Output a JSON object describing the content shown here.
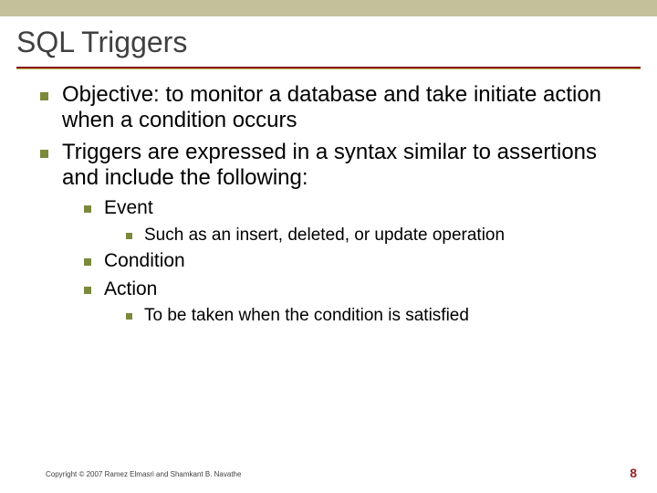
{
  "colors": {
    "top_band": "#c2c19a",
    "divider_top": "#851818",
    "divider_bottom": "#c6b15e",
    "bullet": "#7a8a3a",
    "title_text": "#404040",
    "body_text": "#000000",
    "page_num": "#932626",
    "background": "#ffffff"
  },
  "typography": {
    "title_fontsize": 32,
    "lvl1_fontsize": 24,
    "lvl2_fontsize": 21,
    "lvl3_fontsize": 19,
    "footer_fontsize": 8,
    "page_num_fontsize": 14,
    "font_family": "Arial"
  },
  "title": "SQL Triggers",
  "bullets": {
    "b1": "Objective: to monitor a database and take initiate action when a condition occurs",
    "b2": "Triggers are expressed in a syntax similar to assertions and include the following:",
    "b2_1": "Event",
    "b2_1_1": "Such as an insert, deleted, or update operation",
    "b2_2": "Condition",
    "b2_3": "Action",
    "b2_3_1": "To be taken when the condition is satisfied"
  },
  "footer": "Copyright © 2007 Ramez Elmasri and Shamkant B. Navathe",
  "page_number": "8"
}
